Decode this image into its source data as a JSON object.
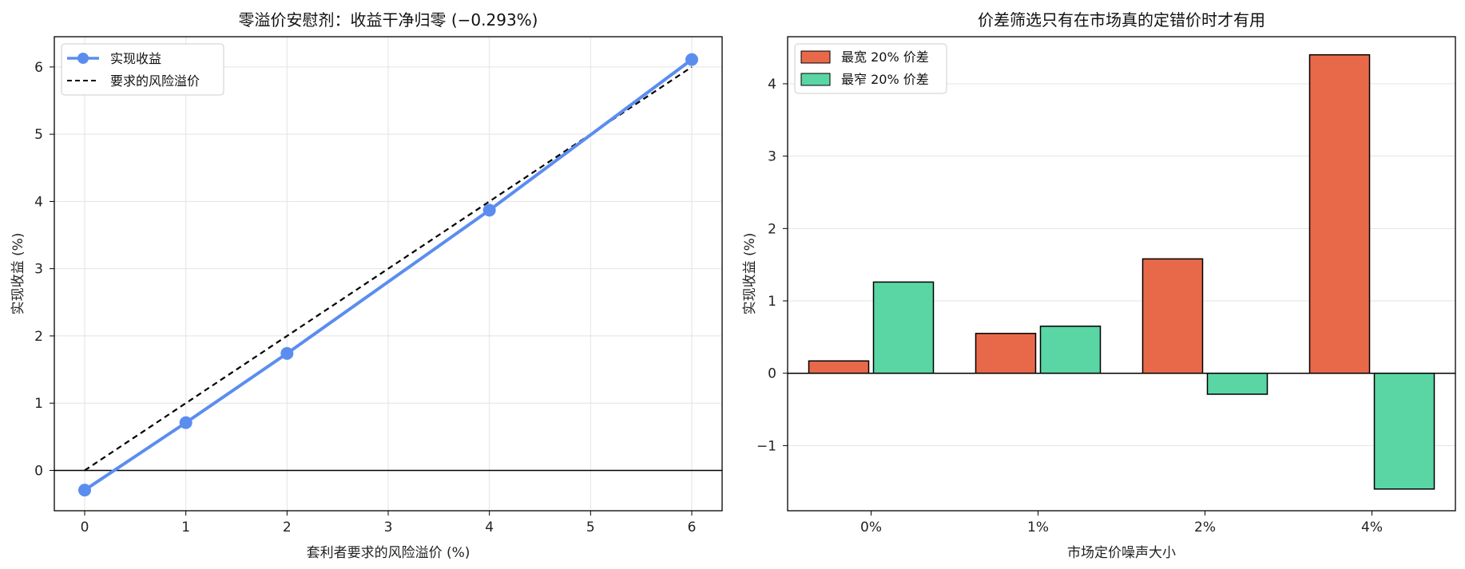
{
  "chart_data": [
    {
      "type": "line",
      "title": "零溢价安慰剂：收益干净归零 (−0.293%)",
      "xlabel": "套利者要求的风险溢价 (%)",
      "ylabel": "实现收益 (%)",
      "xlim": [
        -0.3,
        6.3
      ],
      "ylim": [
        -0.6,
        6.45
      ],
      "xticks": [
        "0",
        "1",
        "2",
        "3",
        "4",
        "5",
        "6"
      ],
      "yticks": [
        "0",
        "1",
        "2",
        "3",
        "4",
        "5",
        "6"
      ],
      "grid": true,
      "legend_position": "top-left",
      "series": [
        {
          "name": "实现收益",
          "color": "#5b8def",
          "style": "solid-markers",
          "x": [
            0,
            1,
            2,
            4,
            6
          ],
          "y": [
            -0.293,
            0.71,
            1.74,
            3.87,
            6.11
          ]
        },
        {
          "name": "要求的风险溢价",
          "color": "#000000",
          "style": "dashed",
          "x": [
            0,
            6
          ],
          "y": [
            0,
            6
          ]
        }
      ]
    },
    {
      "type": "bar",
      "title": "价差筛选只有在市场真的定错价时才有用",
      "xlabel": "市场定价噪声大小",
      "ylabel": "实现收益 (%)",
      "categories": [
        "0%",
        "1%",
        "2%",
        "4%"
      ],
      "ylim": [
        -1.9,
        4.65
      ],
      "yticks": [
        "−1",
        "0",
        "1",
        "2",
        "3",
        "4"
      ],
      "grid": true,
      "legend_position": "top-left",
      "series": [
        {
          "name": "最宽 20% 价差",
          "color": "#e8694a",
          "values": [
            0.17,
            0.55,
            1.58,
            4.4
          ]
        },
        {
          "name": "最窄 20% 价差",
          "color": "#59d6a4",
          "values": [
            1.26,
            0.65,
            -0.29,
            -1.6
          ]
        }
      ]
    }
  ]
}
